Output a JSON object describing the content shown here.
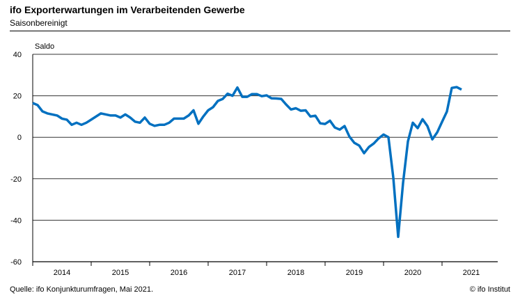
{
  "title": "ifo Exporterwartungen im Verarbeitenden Gewerbe",
  "subtitle": "Saisonbereinigt",
  "source": "Quelle: ifo Konjunkturumfragen,   Mai 2021.",
  "copyright": "© ifo Institut",
  "chart_data": {
    "type": "line",
    "ylabel": "Saldo",
    "ylim": [
      -60,
      40
    ],
    "yticks": [
      40,
      20,
      0,
      -20,
      -40,
      -60
    ],
    "grid": true,
    "x_start": "2014-01",
    "frequency": "monthly",
    "year_labels": [
      "2014",
      "2015",
      "2016",
      "2017",
      "2018",
      "2019",
      "2020",
      "2021"
    ],
    "color": "#0070C0",
    "series": [
      {
        "name": "Exporterwartungen",
        "values": [
          16.5,
          15.5,
          12.5,
          11.5,
          11,
          10.5,
          9,
          8.5,
          6,
          7,
          6,
          7,
          8.5,
          10,
          11.5,
          11,
          10.5,
          10.5,
          9.5,
          11,
          9.5,
          7.5,
          7,
          9.5,
          6.5,
          5.5,
          6,
          6,
          7,
          9,
          9,
          9,
          10.5,
          13,
          6.5,
          10,
          13,
          14.5,
          17.5,
          18.5,
          21,
          20,
          24,
          19.5,
          19.5,
          20.8,
          20.8,
          19.8,
          20.2,
          18.8,
          18.7,
          18.5,
          15.8,
          13.4,
          14,
          12.8,
          13,
          10,
          10.4,
          6.7,
          6.4,
          8,
          4.7,
          3.7,
          5.4,
          0.3,
          -2.7,
          -4,
          -7.7,
          -4.7,
          -3,
          -0.5,
          1.3,
          0,
          -19.5,
          -48,
          -22,
          -2,
          7,
          4.4,
          8.7,
          5.4,
          -1,
          2.3,
          7.4,
          12.4,
          23.8,
          24.2,
          23
        ]
      }
    ]
  }
}
